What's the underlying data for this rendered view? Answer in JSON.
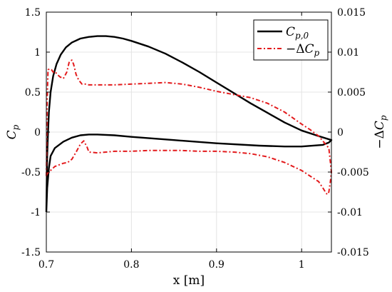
{
  "chart_data": {
    "type": "line",
    "xlabel": "x  [m]",
    "ylabel_left": "C_p",
    "ylabel_right": "−ΔC_p",
    "xlim": [
      0.7,
      1.035
    ],
    "ylim_left": [
      -1.5,
      1.5
    ],
    "ylim_right": [
      -0.015,
      0.015
    ],
    "x_ticks": [
      "0.7",
      "0.8",
      "0.9",
      "1"
    ],
    "y_ticks_left": [
      "1.5",
      "1",
      "0.5",
      "0",
      "-0.5",
      "-1",
      "-1.5"
    ],
    "y_ticks_right": [
      "0.015",
      "0.01",
      "0.005",
      "0",
      "-0.005",
      "-0.01",
      "-0.015"
    ],
    "grid": true,
    "legend_position": "top-right",
    "legend": [
      {
        "label": "C_{p,0}",
        "style": "solid",
        "color": "#000000"
      },
      {
        "label": "−ΔC_p",
        "style": "dash-dot",
        "color": "#e31a1c"
      }
    ],
    "series": [
      {
        "name": "C_{p,0}",
        "axis": "left",
        "color": "#000000",
        "style": "solid",
        "x": [
          0.7,
          0.7005,
          0.701,
          0.702,
          0.703,
          0.705,
          0.708,
          0.712,
          0.717,
          0.723,
          0.73,
          0.74,
          0.75,
          0.76,
          0.77,
          0.78,
          0.79,
          0.8,
          0.82,
          0.84,
          0.86,
          0.88,
          0.9,
          0.92,
          0.94,
          0.96,
          0.98,
          1.0,
          1.02,
          1.035,
          1.032,
          1.025,
          1.0,
          0.98,
          0.95,
          0.9,
          0.85,
          0.8,
          0.78,
          0.76,
          0.75,
          0.74,
          0.73,
          0.72,
          0.71,
          0.705,
          0.703,
          0.701,
          0.7
        ],
        "y": [
          -1.0,
          -0.6,
          -0.3,
          0.0,
          0.25,
          0.5,
          0.7,
          0.85,
          0.97,
          1.06,
          1.12,
          1.17,
          1.19,
          1.2,
          1.2,
          1.19,
          1.17,
          1.14,
          1.07,
          0.98,
          0.87,
          0.75,
          0.62,
          0.49,
          0.36,
          0.24,
          0.12,
          0.02,
          -0.05,
          -0.1,
          -0.13,
          -0.16,
          -0.18,
          -0.18,
          -0.17,
          -0.14,
          -0.1,
          -0.06,
          -0.04,
          -0.03,
          -0.03,
          -0.04,
          -0.07,
          -0.12,
          -0.2,
          -0.3,
          -0.45,
          -0.7,
          -1.0
        ]
      },
      {
        "name": "−ΔC_p",
        "axis": "right",
        "color": "#e31a1c",
        "style": "dash-dot",
        "x": [
          0.7,
          0.7005,
          0.701,
          0.702,
          0.704,
          0.706,
          0.708,
          0.71,
          0.713,
          0.716,
          0.72,
          0.724,
          0.727,
          0.73,
          0.732,
          0.735,
          0.738,
          0.742,
          0.746,
          0.75,
          0.76,
          0.78,
          0.8,
          0.82,
          0.84,
          0.86,
          0.88,
          0.9,
          0.92,
          0.94,
          0.96,
          0.98,
          1.0,
          1.01,
          1.02,
          1.028,
          1.032,
          1.035,
          1.034,
          1.032,
          1.03,
          1.028,
          1.025,
          1.02,
          1.01,
          1.0,
          0.98,
          0.96,
          0.94,
          0.92,
          0.9,
          0.88,
          0.86,
          0.84,
          0.82,
          0.8,
          0.78,
          0.76,
          0.75,
          0.748,
          0.744,
          0.74,
          0.735,
          0.73,
          0.725,
          0.72,
          0.715,
          0.71,
          0.706,
          0.703,
          0.701,
          0.7
        ],
        "y": [
          -0.0055,
          -0.002,
          0.004,
          0.0078,
          0.0079,
          0.0078,
          0.0075,
          0.0076,
          0.0072,
          0.0069,
          0.0067,
          0.0075,
          0.0088,
          0.009,
          0.0085,
          0.0072,
          0.0065,
          0.006,
          0.006,
          0.0059,
          0.0059,
          0.0059,
          0.006,
          0.0061,
          0.0062,
          0.006,
          0.0056,
          0.0051,
          0.0047,
          0.0043,
          0.0036,
          0.0025,
          0.001,
          0.0003,
          -0.0005,
          -0.0015,
          -0.002,
          -0.005,
          -0.006,
          -0.0075,
          -0.0078,
          -0.0075,
          -0.007,
          -0.0062,
          -0.0055,
          -0.0048,
          -0.0038,
          -0.0031,
          -0.0027,
          -0.0025,
          -0.0024,
          -0.0024,
          -0.0023,
          -0.0023,
          -0.0023,
          -0.0024,
          -0.0024,
          -0.0026,
          -0.0025,
          -0.0019,
          -0.0011,
          -0.0015,
          -0.0025,
          -0.0034,
          -0.0038,
          -0.0039,
          -0.0041,
          -0.0043,
          -0.0047,
          -0.005,
          -0.0052,
          -0.0055
        ]
      }
    ]
  }
}
